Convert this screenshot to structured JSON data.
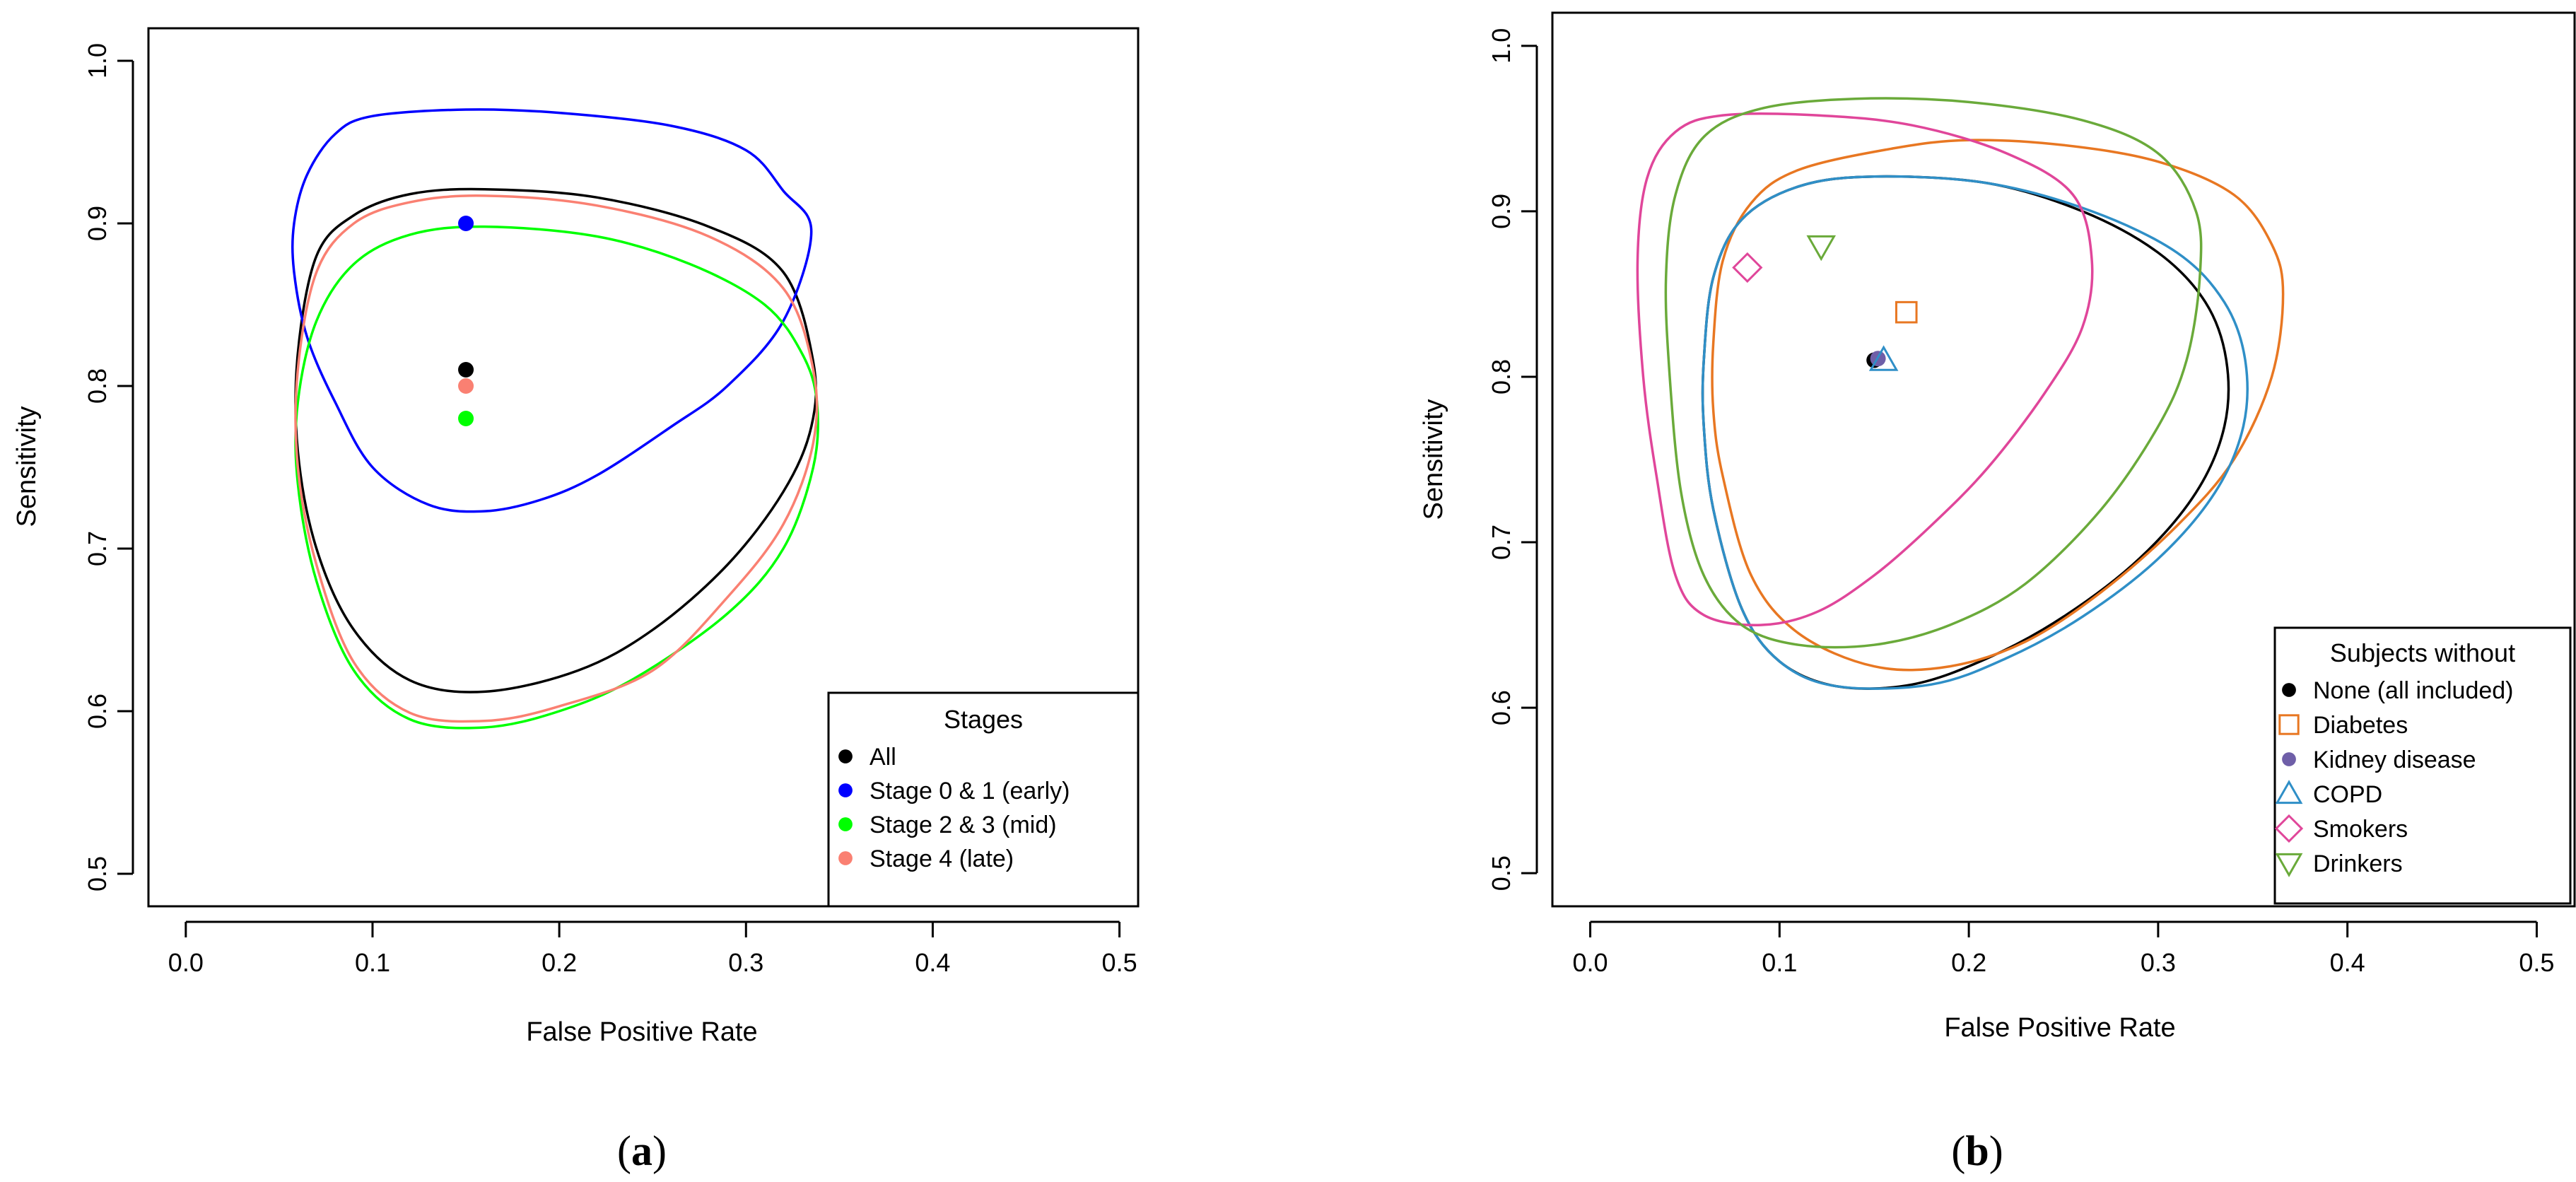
{
  "chart_data": [
    {
      "type": "scatter",
      "panel_label": "a",
      "xlabel": "False Positive Rate",
      "ylabel": "Sensitivity",
      "xlim": [
        -0.02,
        0.51
      ],
      "ylim": [
        0.48,
        1.02
      ],
      "x_ticks": [
        0.0,
        0.1,
        0.2,
        0.3,
        0.4,
        0.5
      ],
      "y_ticks": [
        0.5,
        0.6,
        0.7,
        0.8,
        0.9,
        1.0
      ],
      "x_tick_labels": [
        "0.0",
        "0.1",
        "0.2",
        "0.3",
        "0.4",
        "0.5"
      ],
      "y_tick_labels": [
        "0.5",
        "0.6",
        "0.7",
        "0.8",
        "0.9",
        "1.0"
      ],
      "legend": {
        "title": "Stages",
        "position": "bottom-right"
      },
      "series": [
        {
          "name": "All",
          "color": "#000000",
          "marker": "dot",
          "point": [
            0.15,
            0.81
          ],
          "region": [
            [
              0.06,
              0.82
            ],
            [
              0.07,
              0.88
            ],
            [
              0.09,
              0.905
            ],
            [
              0.12,
              0.918
            ],
            [
              0.16,
              0.921
            ],
            [
              0.22,
              0.916
            ],
            [
              0.28,
              0.898
            ],
            [
              0.32,
              0.87
            ],
            [
              0.336,
              0.815
            ],
            [
              0.335,
              0.775
            ],
            [
              0.32,
              0.735
            ],
            [
              0.29,
              0.69
            ],
            [
              0.25,
              0.65
            ],
            [
              0.21,
              0.625
            ],
            [
              0.16,
              0.612
            ],
            [
              0.12,
              0.619
            ],
            [
              0.09,
              0.65
            ],
            [
              0.07,
              0.7
            ],
            [
              0.06,
              0.76
            ]
          ]
        },
        {
          "name": "Stage 0 & 1 (early)",
          "color": "#0000ff",
          "marker": "dot",
          "point": [
            0.15,
            0.9
          ],
          "region": [
            [
              0.058,
              0.9
            ],
            [
              0.065,
              0.93
            ],
            [
              0.08,
              0.955
            ],
            [
              0.1,
              0.966
            ],
            [
              0.15,
              0.97
            ],
            [
              0.2,
              0.968
            ],
            [
              0.26,
              0.96
            ],
            [
              0.3,
              0.945
            ],
            [
              0.32,
              0.92
            ],
            [
              0.335,
              0.895
            ],
            [
              0.32,
              0.84
            ],
            [
              0.29,
              0.8
            ],
            [
              0.26,
              0.775
            ],
            [
              0.22,
              0.745
            ],
            [
              0.19,
              0.73
            ],
            [
              0.16,
              0.723
            ],
            [
              0.13,
              0.727
            ],
            [
              0.1,
              0.75
            ],
            [
              0.08,
              0.79
            ],
            [
              0.065,
              0.83
            ],
            [
              0.058,
              0.87
            ]
          ]
        },
        {
          "name": "Stage 2 & 3 (mid)",
          "color": "#00ff00",
          "marker": "dot",
          "point": [
            0.15,
            0.78
          ],
          "region": [
            [
              0.06,
              0.79
            ],
            [
              0.07,
              0.84
            ],
            [
              0.09,
              0.875
            ],
            [
              0.12,
              0.893
            ],
            [
              0.16,
              0.898
            ],
            [
              0.22,
              0.892
            ],
            [
              0.27,
              0.875
            ],
            [
              0.31,
              0.85
            ],
            [
              0.33,
              0.82
            ],
            [
              0.338,
              0.79
            ],
            [
              0.336,
              0.75
            ],
            [
              0.32,
              0.7
            ],
            [
              0.29,
              0.66
            ],
            [
              0.24,
              0.62
            ],
            [
              0.2,
              0.6
            ],
            [
              0.16,
              0.59
            ],
            [
              0.12,
              0.595
            ],
            [
              0.09,
              0.625
            ],
            [
              0.07,
              0.68
            ],
            [
              0.06,
              0.74
            ]
          ]
        },
        {
          "name": "Stage 4 (late)",
          "color": "#fa8072",
          "marker": "dot",
          "point": [
            0.15,
            0.8
          ],
          "region": [
            [
              0.06,
              0.81
            ],
            [
              0.07,
              0.87
            ],
            [
              0.09,
              0.9
            ],
            [
              0.12,
              0.913
            ],
            [
              0.16,
              0.917
            ],
            [
              0.22,
              0.911
            ],
            [
              0.28,
              0.892
            ],
            [
              0.32,
              0.86
            ],
            [
              0.336,
              0.81
            ],
            [
              0.336,
              0.765
            ],
            [
              0.32,
              0.715
            ],
            [
              0.29,
              0.67
            ],
            [
              0.25,
              0.625
            ],
            [
              0.2,
              0.603
            ],
            [
              0.16,
              0.594
            ],
            [
              0.12,
              0.599
            ],
            [
              0.09,
              0.63
            ],
            [
              0.07,
              0.69
            ],
            [
              0.06,
              0.75
            ]
          ]
        }
      ]
    },
    {
      "type": "scatter",
      "panel_label": "b",
      "xlabel": "False Positive Rate",
      "ylabel": "Sensitivity",
      "xlim": [
        -0.02,
        0.52
      ],
      "ylim": [
        0.48,
        1.02
      ],
      "x_ticks": [
        0.0,
        0.1,
        0.2,
        0.3,
        0.4,
        0.5
      ],
      "y_ticks": [
        0.5,
        0.6,
        0.7,
        0.8,
        0.9,
        1.0
      ],
      "x_tick_labels": [
        "0.0",
        "0.1",
        "0.2",
        "0.3",
        "0.4",
        "0.5"
      ],
      "y_tick_labels": [
        "0.5",
        "0.6",
        "0.7",
        "0.8",
        "0.9",
        "1.0"
      ],
      "legend": {
        "title": "Subjects without",
        "position": "bottom-right"
      },
      "series": [
        {
          "name": "None (all included)",
          "color": "#000000",
          "marker": "dot",
          "point": [
            0.15,
            0.81
          ],
          "region": [
            [
              0.06,
              0.81
            ],
            [
              0.065,
              0.86
            ],
            [
              0.08,
              0.895
            ],
            [
              0.11,
              0.915
            ],
            [
              0.15,
              0.921
            ],
            [
              0.21,
              0.917
            ],
            [
              0.26,
              0.9
            ],
            [
              0.3,
              0.875
            ],
            [
              0.325,
              0.845
            ],
            [
              0.336,
              0.81
            ],
            [
              0.335,
              0.77
            ],
            [
              0.32,
              0.73
            ],
            [
              0.29,
              0.69
            ],
            [
              0.25,
              0.655
            ],
            [
              0.21,
              0.63
            ],
            [
              0.17,
              0.614
            ],
            [
              0.13,
              0.613
            ],
            [
              0.1,
              0.628
            ],
            [
              0.08,
              0.66
            ],
            [
              0.065,
              0.72
            ],
            [
              0.06,
              0.77
            ]
          ]
        },
        {
          "name": "Diabetes",
          "color": "#e87722",
          "marker": "square",
          "point": [
            0.167,
            0.839
          ],
          "region": [
            [
              0.065,
              0.82
            ],
            [
              0.07,
              0.87
            ],
            [
              0.085,
              0.905
            ],
            [
              0.11,
              0.925
            ],
            [
              0.16,
              0.938
            ],
            [
              0.2,
              0.943
            ],
            [
              0.25,
              0.94
            ],
            [
              0.3,
              0.93
            ],
            [
              0.34,
              0.91
            ],
            [
              0.36,
              0.88
            ],
            [
              0.366,
              0.85
            ],
            [
              0.36,
              0.8
            ],
            [
              0.34,
              0.75
            ],
            [
              0.31,
              0.71
            ],
            [
              0.27,
              0.67
            ],
            [
              0.23,
              0.64
            ],
            [
              0.19,
              0.625
            ],
            [
              0.15,
              0.625
            ],
            [
              0.11,
              0.645
            ],
            [
              0.085,
              0.68
            ],
            [
              0.07,
              0.74
            ],
            [
              0.065,
              0.78
            ]
          ]
        },
        {
          "name": "Kidney disease",
          "color": "#6f5fa8",
          "marker": "dot",
          "point": [
            0.152,
            0.811
          ]
        },
        {
          "name": "COPD",
          "color": "#2f8fc7",
          "marker": "triangle-up",
          "point": [
            0.155,
            0.81
          ],
          "region": [
            [
              0.06,
              0.81
            ],
            [
              0.065,
              0.86
            ],
            [
              0.08,
              0.895
            ],
            [
              0.11,
              0.915
            ],
            [
              0.15,
              0.921
            ],
            [
              0.21,
              0.917
            ],
            [
              0.265,
              0.9
            ],
            [
              0.31,
              0.875
            ],
            [
              0.335,
              0.845
            ],
            [
              0.346,
              0.81
            ],
            [
              0.345,
              0.77
            ],
            [
              0.33,
              0.73
            ],
            [
              0.3,
              0.69
            ],
            [
              0.26,
              0.655
            ],
            [
              0.22,
              0.63
            ],
            [
              0.18,
              0.614
            ],
            [
              0.13,
              0.613
            ],
            [
              0.1,
              0.628
            ],
            [
              0.08,
              0.66
            ],
            [
              0.065,
              0.72
            ],
            [
              0.06,
              0.77
            ]
          ]
        },
        {
          "name": "Smokers",
          "color": "#e0469a",
          "marker": "diamond",
          "point": [
            0.083,
            0.866
          ],
          "region": [
            [
              0.025,
              0.87
            ],
            [
              0.03,
              0.92
            ],
            [
              0.045,
              0.948
            ],
            [
              0.07,
              0.958
            ],
            [
              0.12,
              0.958
            ],
            [
              0.17,
              0.952
            ],
            [
              0.22,
              0.935
            ],
            [
              0.255,
              0.91
            ],
            [
              0.265,
              0.87
            ],
            [
              0.26,
              0.83
            ],
            [
              0.24,
              0.79
            ],
            [
              0.21,
              0.745
            ],
            [
              0.18,
              0.71
            ],
            [
              0.15,
              0.68
            ],
            [
              0.12,
              0.658
            ],
            [
              0.09,
              0.65
            ],
            [
              0.06,
              0.656
            ],
            [
              0.045,
              0.68
            ],
            [
              0.035,
              0.74
            ],
            [
              0.028,
              0.8
            ]
          ]
        },
        {
          "name": "Drinkers",
          "color": "#6aaa3a",
          "marker": "triangle-down",
          "point": [
            0.122,
            0.879
          ],
          "region": [
            [
              0.04,
              0.86
            ],
            [
              0.045,
              0.91
            ],
            [
              0.06,
              0.945
            ],
            [
              0.09,
              0.962
            ],
            [
              0.14,
              0.968
            ],
            [
              0.2,
              0.966
            ],
            [
              0.26,
              0.955
            ],
            [
              0.3,
              0.935
            ],
            [
              0.32,
              0.9
            ],
            [
              0.322,
              0.86
            ],
            [
              0.315,
              0.81
            ],
            [
              0.3,
              0.77
            ],
            [
              0.27,
              0.72
            ],
            [
              0.23,
              0.675
            ],
            [
              0.19,
              0.65
            ],
            [
              0.15,
              0.638
            ],
            [
              0.11,
              0.638
            ],
            [
              0.08,
              0.65
            ],
            [
              0.06,
              0.68
            ],
            [
              0.048,
              0.73
            ],
            [
              0.042,
              0.8
            ]
          ]
        }
      ]
    }
  ]
}
